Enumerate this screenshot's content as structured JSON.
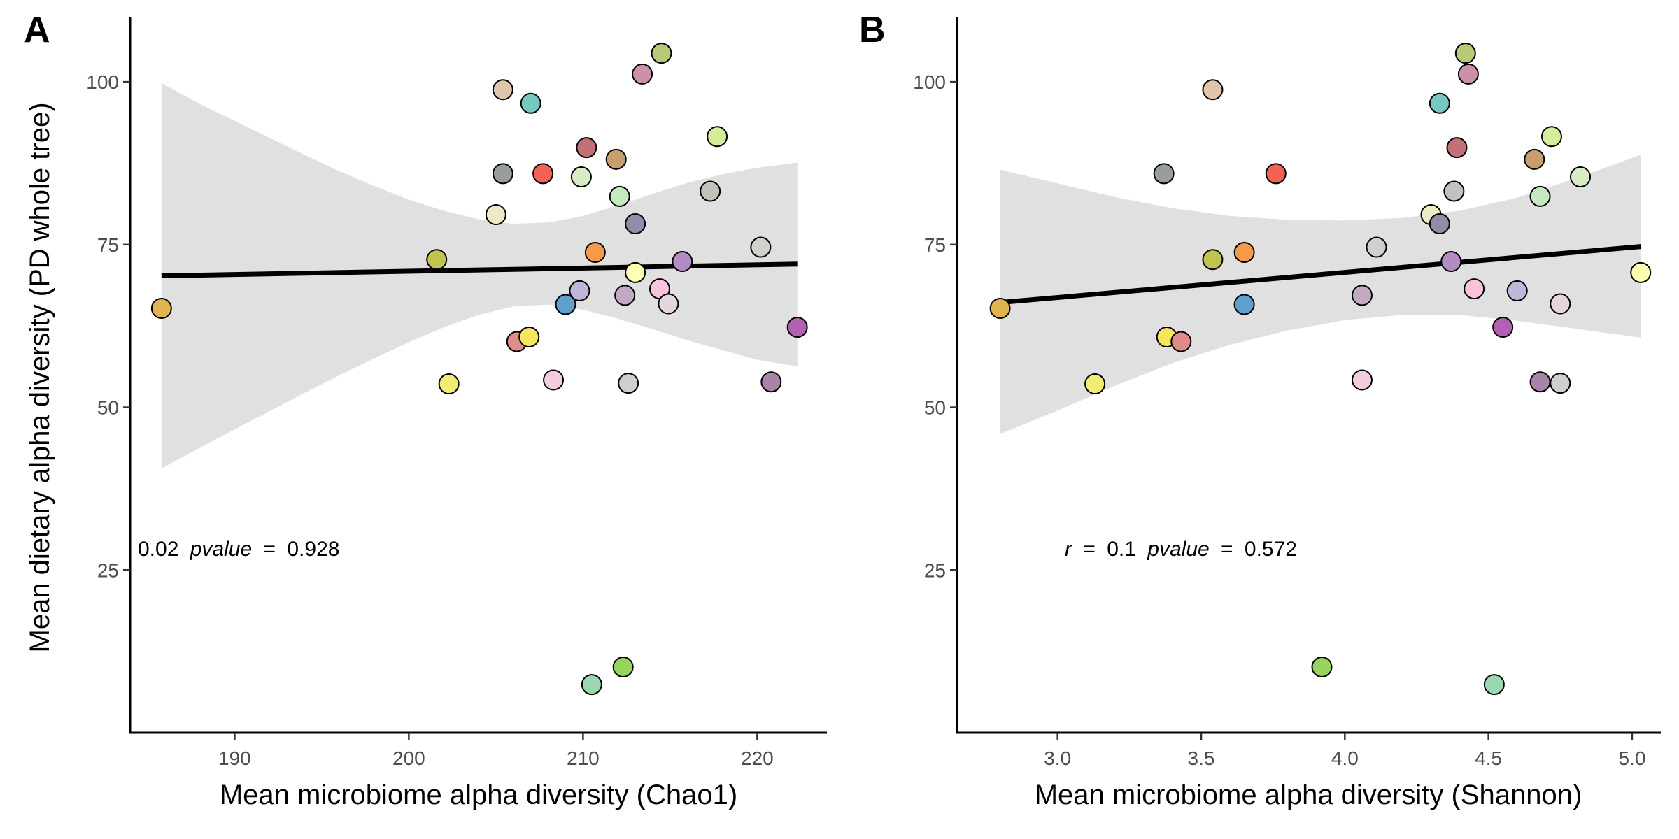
{
  "figure": {
    "y_axis_title": "Mean dietary alpha diversity (PD whole tree)"
  },
  "chart_data": [
    {
      "panel_label": "A",
      "type": "scatter",
      "xlabel": "Mean microbiome alpha diversity (Chao1)",
      "ylabel": "Mean dietary alpha diversity (PD whole tree)",
      "xlim": [
        184,
        224
      ],
      "ylim": [
        0,
        110
      ],
      "x_ticks": [
        190,
        200,
        210,
        220
      ],
      "x_tick_labels": [
        "190",
        "200",
        "210",
        "220"
      ],
      "y_ticks": [
        25,
        50,
        75,
        100
      ],
      "y_tick_labels": [
        "25",
        "50",
        "75",
        "100"
      ],
      "grid": false,
      "annotation": {
        "r_text": "0.02",
        "p_label": "pvalue",
        "equals": "=",
        "p_text": "0.928"
      },
      "regression": {
        "x": [
          185.8,
          222.3
        ],
        "y": [
          70.2,
          72.0
        ],
        "ci_x": [
          185.8,
          188,
          190,
          192,
          194,
          196,
          198,
          200,
          202,
          204,
          206,
          208,
          210,
          212,
          214,
          216,
          218,
          220,
          222.3
        ],
        "ci_low": [
          40.6,
          43.8,
          46.6,
          49.4,
          52.2,
          54.9,
          57.5,
          60.0,
          62.3,
          64.2,
          65.5,
          65.8,
          65.0,
          63.6,
          62.0,
          60.3,
          58.8,
          57.3,
          56.3
        ],
        "ci_high": [
          99.8,
          96.6,
          94.0,
          91.4,
          88.8,
          86.3,
          84.0,
          81.9,
          80.2,
          78.9,
          78.2,
          78.4,
          79.4,
          81.0,
          82.8,
          84.5,
          85.8,
          86.8,
          87.6
        ]
      },
      "points": [
        {
          "x": 185.8,
          "y": 65.2,
          "color": "#e0b44e"
        },
        {
          "x": 201.6,
          "y": 72.7,
          "color": "#c2c24e"
        },
        {
          "x": 202.3,
          "y": 53.6,
          "color": "#f2ec72"
        },
        {
          "x": 205.0,
          "y": 79.6,
          "color": "#ecebc4"
        },
        {
          "x": 205.4,
          "y": 98.8,
          "color": "#dfc6aa"
        },
        {
          "x": 205.4,
          "y": 85.9,
          "color": "#979f98"
        },
        {
          "x": 206.2,
          "y": 60.1,
          "color": "#e08a8c"
        },
        {
          "x": 206.9,
          "y": 60.8,
          "color": "#f7e65a"
        },
        {
          "x": 207.0,
          "y": 96.7,
          "color": "#76c8c0"
        },
        {
          "x": 207.7,
          "y": 85.9,
          "color": "#f26355"
        },
        {
          "x": 208.3,
          "y": 54.2,
          "color": "#f2cde0"
        },
        {
          "x": 209.0,
          "y": 65.8,
          "color": "#609fcb"
        },
        {
          "x": 209.8,
          "y": 67.9,
          "color": "#c0b6d8"
        },
        {
          "x": 209.9,
          "y": 85.4,
          "color": "#d5ecc4"
        },
        {
          "x": 210.2,
          "y": 89.9,
          "color": "#c27276"
        },
        {
          "x": 210.5,
          "y": 7.4,
          "color": "#9bd8b2"
        },
        {
          "x": 210.7,
          "y": 73.8,
          "color": "#f49a4c"
        },
        {
          "x": 211.9,
          "y": 88.1,
          "color": "#c99e6e"
        },
        {
          "x": 212.1,
          "y": 82.4,
          "color": "#c6e8c0"
        },
        {
          "x": 212.3,
          "y": 10.1,
          "color": "#98d35c"
        },
        {
          "x": 212.4,
          "y": 67.2,
          "color": "#c3aac4"
        },
        {
          "x": 212.6,
          "y": 53.7,
          "color": "#cfcfcf"
        },
        {
          "x": 213.0,
          "y": 78.2,
          "color": "#958aa8"
        },
        {
          "x": 213.0,
          "y": 70.7,
          "color": "#ffffb2"
        },
        {
          "x": 213.4,
          "y": 101.2,
          "color": "#cc90a8"
        },
        {
          "x": 214.4,
          "y": 68.2,
          "color": "#f9c2dd"
        },
        {
          "x": 214.5,
          "y": 104.4,
          "color": "#b8c978"
        },
        {
          "x": 214.9,
          "y": 65.9,
          "color": "#e6d5de"
        },
        {
          "x": 215.7,
          "y": 72.4,
          "color": "#b48cc4"
        },
        {
          "x": 217.3,
          "y": 83.2,
          "color": "#c2c2bc"
        },
        {
          "x": 217.7,
          "y": 91.6,
          "color": "#d6ec9a"
        },
        {
          "x": 220.2,
          "y": 74.6,
          "color": "#d0d0cc"
        },
        {
          "x": 220.8,
          "y": 53.9,
          "color": "#a784a8"
        },
        {
          "x": 222.3,
          "y": 62.3,
          "color": "#b261b2"
        }
      ]
    },
    {
      "panel_label": "B",
      "type": "scatter",
      "xlabel": "Mean microbiome alpha diversity (Shannon)",
      "ylabel": "",
      "xlim": [
        2.65,
        5.1
      ],
      "ylim": [
        0,
        110
      ],
      "x_ticks": [
        3.0,
        3.5,
        4.0,
        4.5,
        5.0
      ],
      "x_tick_labels": [
        "3.0",
        "3.5",
        "4.0",
        "4.5",
        "5.0"
      ],
      "y_ticks": [
        25,
        50,
        75,
        100
      ],
      "y_tick_labels": [
        "25",
        "50",
        "75",
        "100"
      ],
      "grid": false,
      "annotation": {
        "r_label": "r",
        "equals": "=",
        "r_text": "0.1",
        "p_label": "pvalue",
        "p_text": "0.572"
      },
      "regression": {
        "x": [
          2.8,
          5.03
        ],
        "y": [
          66.1,
          74.7
        ],
        "ci_x": [
          2.8,
          3.0,
          3.2,
          3.4,
          3.6,
          3.8,
          4.0,
          4.2,
          4.4,
          4.6,
          4.8,
          5.03
        ],
        "ci_low": [
          45.9,
          49.5,
          53.3,
          56.8,
          59.6,
          61.8,
          63.4,
          64.2,
          64.2,
          63.3,
          62.1,
          60.7
        ],
        "ci_high": [
          86.5,
          84.4,
          82.3,
          80.6,
          79.4,
          78.8,
          78.7,
          79.1,
          80.2,
          82.2,
          85.1,
          88.8
        ]
      },
      "points": [
        {
          "x": 2.8,
          "y": 65.2,
          "color": "#e0b44e"
        },
        {
          "x": 3.13,
          "y": 53.6,
          "color": "#f2ec72"
        },
        {
          "x": 3.37,
          "y": 85.9,
          "color": "#979f98"
        },
        {
          "x": 3.38,
          "y": 60.8,
          "color": "#f7e65a"
        },
        {
          "x": 3.43,
          "y": 60.1,
          "color": "#e08a8c"
        },
        {
          "x": 3.54,
          "y": 98.8,
          "color": "#dfc6aa"
        },
        {
          "x": 3.54,
          "y": 72.7,
          "color": "#c2c24e"
        },
        {
          "x": 3.65,
          "y": 65.8,
          "color": "#609fcb"
        },
        {
          "x": 3.65,
          "y": 73.8,
          "color": "#f49a4c"
        },
        {
          "x": 3.76,
          "y": 85.9,
          "color": "#f26355"
        },
        {
          "x": 3.92,
          "y": 10.1,
          "color": "#98d35c"
        },
        {
          "x": 4.06,
          "y": 54.2,
          "color": "#f2cde0"
        },
        {
          "x": 4.06,
          "y": 67.2,
          "color": "#c3aac4"
        },
        {
          "x": 4.11,
          "y": 74.6,
          "color": "#d0d0cc"
        },
        {
          "x": 4.3,
          "y": 79.6,
          "color": "#ecebc4"
        },
        {
          "x": 4.33,
          "y": 78.2,
          "color": "#958aa8"
        },
        {
          "x": 4.33,
          "y": 96.7,
          "color": "#76c8c0"
        },
        {
          "x": 4.37,
          "y": 72.4,
          "color": "#b48cc4"
        },
        {
          "x": 4.38,
          "y": 83.2,
          "color": "#c2c2bc"
        },
        {
          "x": 4.39,
          "y": 89.9,
          "color": "#c27276"
        },
        {
          "x": 4.42,
          "y": 104.4,
          "color": "#b8c978"
        },
        {
          "x": 4.43,
          "y": 101.2,
          "color": "#cc90a8"
        },
        {
          "x": 4.45,
          "y": 68.2,
          "color": "#f9c2dd"
        },
        {
          "x": 4.52,
          "y": 7.4,
          "color": "#9bd8b2"
        },
        {
          "x": 4.55,
          "y": 62.3,
          "color": "#b261b2"
        },
        {
          "x": 4.6,
          "y": 67.9,
          "color": "#c0b6d8"
        },
        {
          "x": 4.66,
          "y": 88.1,
          "color": "#c99e6e"
        },
        {
          "x": 4.68,
          "y": 82.4,
          "color": "#c6e8c0"
        },
        {
          "x": 4.68,
          "y": 53.9,
          "color": "#a784a8"
        },
        {
          "x": 4.72,
          "y": 91.6,
          "color": "#d6ec9a"
        },
        {
          "x": 4.75,
          "y": 65.9,
          "color": "#e6d5de"
        },
        {
          "x": 4.75,
          "y": 53.7,
          "color": "#cfcfcf"
        },
        {
          "x": 4.82,
          "y": 85.4,
          "color": "#d5ecc4"
        },
        {
          "x": 5.03,
          "y": 70.7,
          "color": "#ffffb2"
        }
      ]
    }
  ]
}
